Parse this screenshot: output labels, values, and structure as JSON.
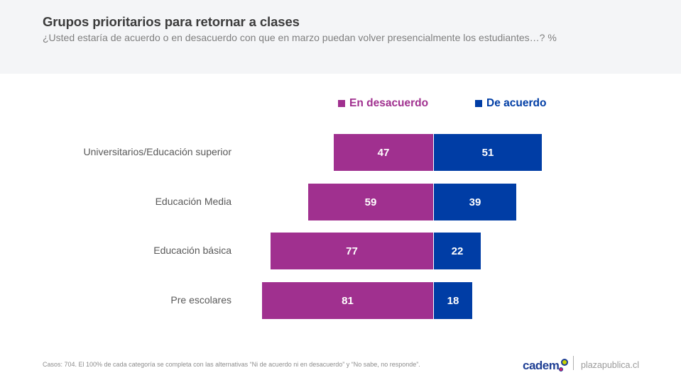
{
  "header": {
    "title": "Grupos prioritarios para retornar a clases",
    "subtitle": "¿Usted estaría de acuerdo o en desacuerdo con que en marzo puedan volver presencialmente los estudiantes…? %"
  },
  "footer": {
    "note": "Casos: 704. El 100% de cada categoría se completa con las alternativas “Ni de acuerdo ni en desacuerdo” y “No sabe, no responde”.",
    "logo": "cadem",
    "site": "plazapublica.cl"
  },
  "colors": {
    "desacuerdo": "#a0308f",
    "acuerdo": "#003da5",
    "header_bg": "#f4f5f7"
  },
  "chart_data": {
    "type": "bar",
    "orientation": "horizontal-diverging",
    "title": "Grupos prioritarios para retornar a clases",
    "subtitle": "¿Usted estaría de acuerdo o en desacuerdo con que en marzo puedan volver presencialmente los estudiantes…? %",
    "xlabel": "",
    "ylabel": "",
    "legend_position": "top",
    "grid": false,
    "categories": [
      "Universitarios/Educación superior",
      "Educación Media",
      "Educación básica",
      "Pre escolares"
    ],
    "series": [
      {
        "name": "En desacuerdo",
        "color": "#a0308f",
        "direction": "left",
        "values": [
          47,
          59,
          77,
          81
        ]
      },
      {
        "name": "De acuerdo",
        "color": "#003da5",
        "direction": "right",
        "values": [
          51,
          39,
          22,
          18
        ]
      }
    ],
    "unit": "%"
  }
}
